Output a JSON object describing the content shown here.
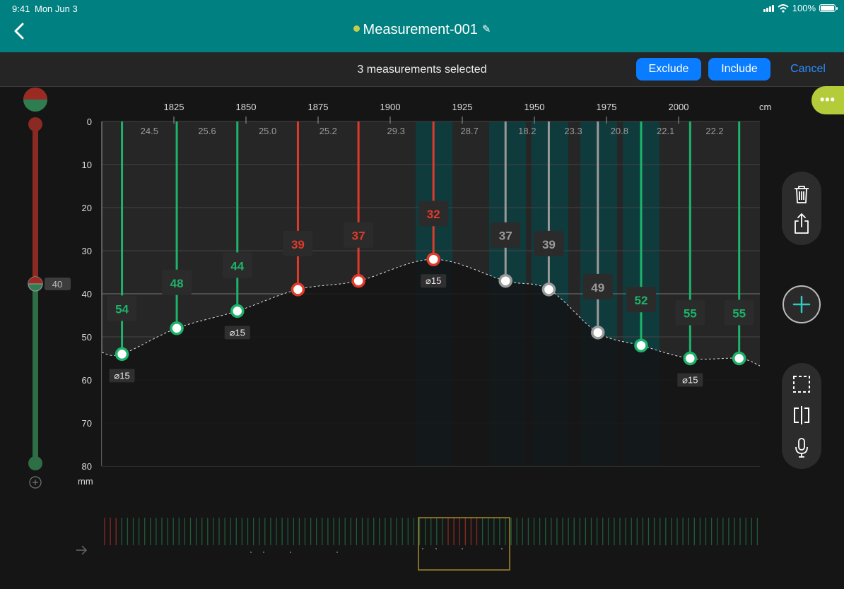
{
  "status": {
    "time": "9:41",
    "date": "Mon Jun 3",
    "battery": "100%"
  },
  "header": {
    "title": "Measurement-001"
  },
  "selection": {
    "text": "3 measurements selected",
    "exclude_label": "Exclude",
    "include_label": "Include",
    "cancel_label": "Cancel"
  },
  "colors": {
    "header": "#008080",
    "green": "#1db36a",
    "red": "#e03a2b",
    "grey": "#9a9a9a",
    "accent_blue": "#0a7cff",
    "more": "#b4cc3a"
  },
  "slider": {
    "value": "40"
  },
  "x_axis": {
    "unit": "cm",
    "ticks": [
      "1825",
      "1850",
      "1875",
      "1900",
      "1925",
      "1950",
      "1975",
      "2000"
    ]
  },
  "y_axis": {
    "unit": "mm",
    "ticks": [
      "0",
      "10",
      "20",
      "30",
      "40",
      "50",
      "60",
      "70",
      "80"
    ]
  },
  "spacings": [
    "24.5",
    "25.6",
    "25.0",
    "25.2",
    "29.3",
    "28.7",
    "18.2",
    "23.3",
    "20.8",
    "22.1",
    "22.2"
  ],
  "measurements": [
    {
      "value": "54",
      "state": "green",
      "diameter": "⌀15"
    },
    {
      "value": "48",
      "state": "green",
      "diameter": ""
    },
    {
      "value": "44",
      "state": "green",
      "diameter": "⌀15"
    },
    {
      "value": "39",
      "state": "red",
      "diameter": ""
    },
    {
      "value": "37",
      "state": "red",
      "diameter": ""
    },
    {
      "value": "32",
      "state": "red",
      "diameter": "⌀15"
    },
    {
      "value": "37",
      "state": "grey",
      "diameter": ""
    },
    {
      "value": "39",
      "state": "grey",
      "diameter": ""
    },
    {
      "value": "49",
      "state": "grey",
      "diameter": ""
    },
    {
      "value": "52",
      "state": "green",
      "diameter": ""
    },
    {
      "value": "55",
      "state": "green",
      "diameter": "⌀15"
    },
    {
      "value": "55",
      "state": "green",
      "diameter": ""
    }
  ],
  "icons": [
    "back-icon",
    "pencil-icon",
    "trash-icon",
    "share-icon",
    "plus-icon",
    "selection-icon",
    "split-icon",
    "microphone-icon",
    "more-icon",
    "arrow-right-icon",
    "zoom-plus-icon"
  ],
  "chart_data": {
    "type": "scatter",
    "x_unit": "cm",
    "y_unit": "mm",
    "x_ticks": [
      1825,
      1850,
      1875,
      1900,
      1925,
      1950,
      1975,
      2000
    ],
    "y_range": [
      0,
      80
    ],
    "points": [
      {
        "x": 1807,
        "y": 54,
        "state": "green"
      },
      {
        "x": 1826,
        "y": 48,
        "state": "green"
      },
      {
        "x": 1847,
        "y": 44,
        "state": "green"
      },
      {
        "x": 1868,
        "y": 39,
        "state": "red"
      },
      {
        "x": 1889,
        "y": 37,
        "state": "red"
      },
      {
        "x": 1915,
        "y": 32,
        "state": "red"
      },
      {
        "x": 1940,
        "y": 37,
        "state": "grey"
      },
      {
        "x": 1955,
        "y": 39,
        "state": "grey"
      },
      {
        "x": 1972,
        "y": 49,
        "state": "grey"
      },
      {
        "x": 1987,
        "y": 52,
        "state": "green"
      },
      {
        "x": 2004,
        "y": 55,
        "state": "green"
      },
      {
        "x": 2021,
        "y": 55,
        "state": "green"
      }
    ]
  }
}
